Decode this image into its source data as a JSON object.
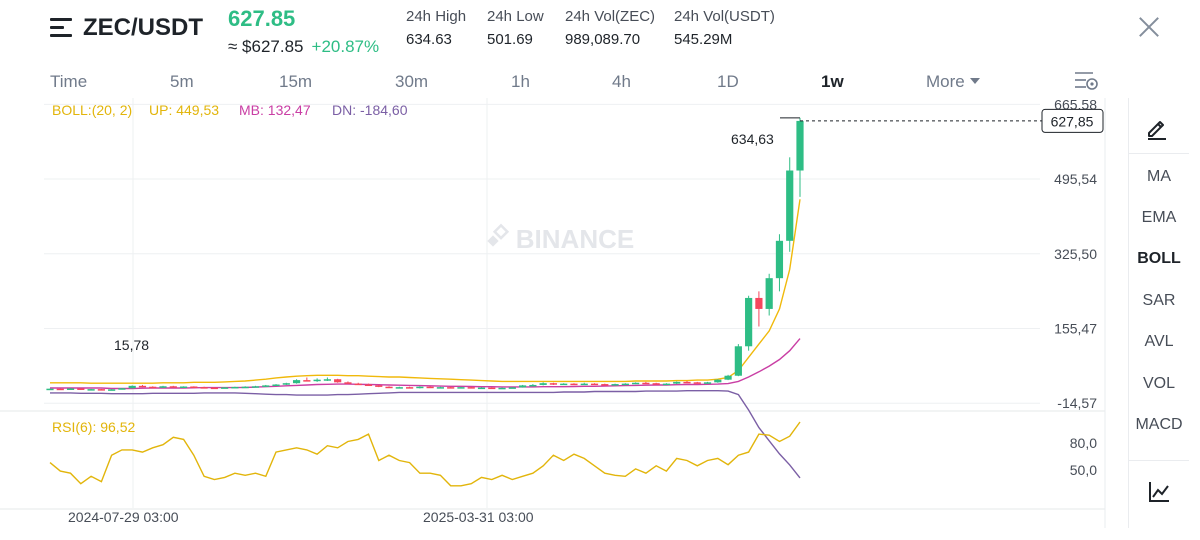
{
  "header": {
    "pair": "ZEC/USDT",
    "last_price": "627.85",
    "usd_price": "≈ $627.85",
    "change_pct": "+20.87%",
    "stats": [
      {
        "label": "24h High",
        "value": "634.63"
      },
      {
        "label": "24h Low",
        "value": "501.69"
      },
      {
        "label": "24h Vol(ZEC)",
        "value": "989,089.70"
      },
      {
        "label": "24h Vol(USDT)",
        "value": "545.29M"
      }
    ]
  },
  "intervals": [
    "Time",
    "5m",
    "15m",
    "30m",
    "1h",
    "4h",
    "1D",
    "1w",
    "More"
  ],
  "active_interval": "1w",
  "sidebar": {
    "items": [
      "MA",
      "EMA",
      "BOLL",
      "SAR",
      "AVL",
      "VOL",
      "MACD"
    ],
    "active": "BOLL"
  },
  "indicators": {
    "boll": {
      "label": "BOLL:(20, 2)",
      "up": "UP: 449,53",
      "mb": "MB: 132,47",
      "dn": "DN: -184,60"
    },
    "rsi": {
      "label": "RSI(6): 96,52"
    }
  },
  "watermark": "BINANCE",
  "colors": {
    "up": "#2ebd85",
    "down": "#f6465d",
    "boll_up": "#f0b90b",
    "boll_mb": "#c93ea4",
    "boll_dn": "#7b5fa5",
    "rsi": "#e2b50b",
    "grid": "#eef0f2"
  },
  "chart_data": {
    "type": "candlestick",
    "price_axis": {
      "ticks": [
        665.58,
        495.54,
        325.5,
        155.47,
        -14.57
      ],
      "tick_labels": [
        "665,58",
        "495,54",
        "325,50",
        "155,47",
        "-14,57"
      ],
      "ylim": [
        -30,
        680
      ]
    },
    "x_axis_labels": [
      "2024-07-29 03:00",
      "2025-03-31 03:00"
    ],
    "high_label": "634,63",
    "low_label": "15,78",
    "current_price_label": "627,85",
    "candles": [
      [
        18,
        19,
        17,
        18.5
      ],
      [
        18.5,
        19,
        17,
        17.5
      ],
      [
        17.5,
        20,
        17,
        19
      ],
      [
        19,
        19.5,
        16.5,
        17
      ],
      [
        17,
        18,
        16,
        17.5
      ],
      [
        17.5,
        18,
        16,
        16.5
      ],
      [
        16.5,
        17.5,
        15.8,
        17
      ],
      [
        17,
        20,
        16.5,
        19.5
      ],
      [
        19.5,
        26,
        19,
        25
      ],
      [
        25,
        27,
        22,
        23
      ],
      [
        23,
        24,
        20,
        21
      ],
      [
        21,
        25,
        20,
        24
      ],
      [
        24,
        25,
        22,
        22.5
      ],
      [
        22.5,
        24,
        21,
        23.5
      ],
      [
        23.5,
        24,
        21.5,
        22
      ],
      [
        22,
        23,
        20.5,
        21
      ],
      [
        21,
        22,
        19.5,
        20.5
      ],
      [
        20.5,
        22,
        20,
        21.5
      ],
      [
        21.5,
        23,
        20.5,
        22.5
      ],
      [
        22.5,
        24,
        21.5,
        23
      ],
      [
        23,
        25,
        22,
        24
      ],
      [
        24,
        27,
        23,
        26
      ],
      [
        26,
        29,
        25,
        28
      ],
      [
        28,
        32,
        27,
        31
      ],
      [
        31,
        40,
        30,
        38
      ],
      [
        38,
        44,
        35,
        37
      ],
      [
        37,
        42,
        34,
        39
      ],
      [
        39,
        44,
        36,
        40
      ],
      [
        40,
        41,
        32,
        33
      ],
      [
        33,
        35,
        29,
        30
      ],
      [
        30,
        32,
        27,
        28
      ],
      [
        28,
        30,
        25,
        26
      ],
      [
        26,
        27,
        22,
        23
      ],
      [
        23,
        24,
        20,
        21
      ],
      [
        21,
        23,
        20,
        22
      ],
      [
        22,
        23,
        19,
        20
      ],
      [
        20,
        24,
        19,
        23
      ],
      [
        23,
        24,
        20,
        21
      ],
      [
        21,
        23,
        20,
        22
      ],
      [
        22,
        23,
        19,
        20
      ],
      [
        20,
        23,
        19.5,
        22
      ],
      [
        22,
        23,
        20,
        20.5
      ],
      [
        20.5,
        22,
        19,
        21
      ],
      [
        21,
        22,
        19,
        19.5
      ],
      [
        19.5,
        21,
        18.5,
        20.5
      ],
      [
        20.5,
        22,
        19.5,
        21.5
      ],
      [
        21.5,
        27,
        21,
        26
      ],
      [
        26,
        29,
        24,
        27
      ],
      [
        27,
        33,
        26,
        31
      ],
      [
        31,
        32,
        27,
        28
      ],
      [
        28,
        31,
        27,
        30
      ],
      [
        30,
        31,
        28,
        29
      ],
      [
        29,
        32,
        28,
        30
      ],
      [
        30,
        31,
        28,
        29
      ],
      [
        29,
        30,
        27,
        28
      ],
      [
        28,
        30,
        27,
        29
      ],
      [
        29,
        31,
        28,
        30
      ],
      [
        30,
        33,
        29,
        32
      ],
      [
        32,
        34,
        30,
        31
      ],
      [
        31,
        32,
        28,
        29
      ],
      [
        29,
        31,
        28,
        30
      ],
      [
        30,
        35,
        29,
        34
      ],
      [
        34,
        36,
        32,
        33
      ],
      [
        33,
        34,
        30,
        31
      ],
      [
        31,
        34,
        30,
        33
      ],
      [
        33,
        40,
        32,
        39
      ],
      [
        39,
        50,
        38,
        48
      ],
      [
        48,
        120,
        47,
        115
      ],
      [
        115,
        230,
        105,
        225
      ],
      [
        225,
        240,
        160,
        200
      ],
      [
        200,
        280,
        185,
        270
      ],
      [
        270,
        370,
        240,
        355
      ],
      [
        355,
        545,
        330,
        515
      ],
      [
        515,
        634.63,
        455,
        627.85
      ]
    ],
    "series": [
      {
        "name": "UP",
        "values": [
          32,
          32,
          32,
          32,
          31,
          31,
          31,
          31,
          31,
          31,
          31,
          32,
          32,
          32,
          33,
          33,
          33,
          34,
          35,
          36,
          38,
          40,
          43,
          45,
          47,
          48,
          49,
          49,
          49,
          48,
          48,
          47,
          46,
          45,
          45,
          44,
          43,
          42,
          41,
          40,
          39,
          38,
          37,
          36,
          35,
          35,
          35,
          35,
          35,
          35,
          35,
          35,
          35,
          35,
          35,
          35,
          35,
          36,
          36,
          36,
          36,
          37,
          37,
          38,
          38,
          40,
          44,
          60,
          90,
          120,
          150,
          200,
          290,
          449.53
        ]
      },
      {
        "name": "MB",
        "values": [
          20,
          20,
          20,
          20,
          20,
          20,
          19,
          19,
          19,
          19.5,
          20,
          20,
          20,
          20,
          20.5,
          21,
          21,
          21,
          21,
          21.5,
          22,
          23,
          24,
          25,
          26,
          27,
          28,
          28.5,
          29,
          29,
          28.5,
          28,
          27.5,
          27,
          26.5,
          26,
          25.5,
          25,
          24.5,
          24,
          24,
          23.5,
          23,
          23,
          22.5,
          22.5,
          22.5,
          22.5,
          23,
          23,
          23,
          23.5,
          24,
          24,
          24.5,
          25,
          25.5,
          26,
          26.5,
          27,
          27,
          27.5,
          28,
          28,
          28.5,
          29,
          30,
          35,
          45,
          57,
          70,
          85,
          105,
          132.47
        ]
      },
      {
        "name": "DN",
        "values": [
          9,
          9,
          9,
          8,
          8,
          8,
          7,
          7,
          7,
          7,
          8,
          8,
          8,
          8,
          8,
          9,
          9,
          9,
          9,
          8,
          7,
          6,
          5,
          5,
          4,
          4,
          4,
          4,
          5,
          5,
          6,
          7,
          8,
          9,
          10,
          10,
          10,
          10,
          10,
          10,
          10,
          10,
          10,
          10,
          10,
          10,
          10,
          10,
          10,
          10,
          11,
          11,
          11,
          12,
          12,
          12,
          12,
          12,
          13,
          13,
          13,
          13,
          14,
          14,
          14,
          14,
          13,
          5,
          -30,
          -70,
          -100,
          -130,
          -155,
          -184.6
        ]
      },
      {
        "name": "RSI(6)",
        "values": [
          58,
          50,
          48,
          38,
          45,
          40,
          65,
          70,
          70,
          68,
          72,
          75,
          82,
          80,
          65,
          45,
          42,
          44,
          48,
          46,
          48,
          45,
          68,
          70,
          72,
          70,
          66,
          74,
          72,
          78,
          80,
          85,
          60,
          65,
          60,
          58,
          48,
          48,
          46,
          36,
          36,
          38,
          44,
          42,
          46,
          42,
          45,
          48,
          55,
          65,
          60,
          66,
          62,
          55,
          48,
          46,
          45,
          52,
          48,
          55,
          50,
          62,
          60,
          55,
          60,
          62,
          56,
          65,
          68,
          85,
          84,
          78,
          83,
          96.52
        ]
      }
    ],
    "rsi_axis": {
      "tick_labels": [
        "80,0",
        "50,0"
      ],
      "ticks": [
        80,
        50
      ],
      "ylim": [
        15,
        105
      ]
    }
  }
}
